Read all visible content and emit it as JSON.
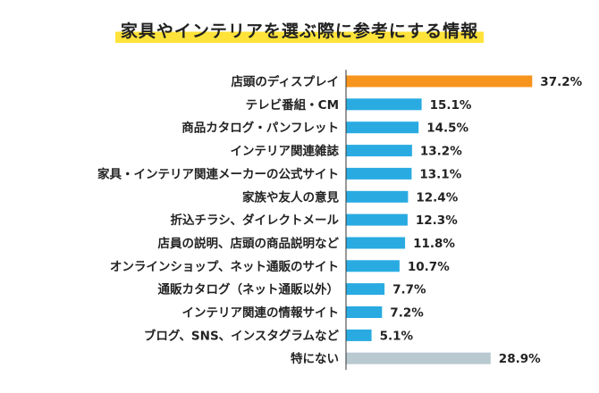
{
  "colors": {
    "highlight": "#F7941D",
    "primary": "#29ABE2",
    "none": "#B9C9D0",
    "axis": "#333333",
    "title_marker": "#FFE33A"
  },
  "chart_data": {
    "type": "bar",
    "orientation": "horizontal",
    "title": "家具やインテリアを選ぶ際に参考にする情報",
    "xlabel": "",
    "ylabel": "",
    "xlim": [
      0,
      40
    ],
    "grid": false,
    "categories": [
      "店頭のディスプレイ",
      "テレビ番組・CM",
      "商品カタログ・パンフレット",
      "インテリア関連雑誌",
      "家具・インテリア関連メーカーの公式サイト",
      "家族や友人の意見",
      "折込チラシ、ダイレクトメール",
      "店員の説明、店頭の商品説明など",
      "オンラインショップ、ネット通販のサイト",
      "通販カタログ（ネット通販以外）",
      "インテリア関連の情報サイト",
      "ブログ、SNS、インスタグラムなど",
      "特にない"
    ],
    "values": [
      37.2,
      15.1,
      14.5,
      13.2,
      13.1,
      12.4,
      12.3,
      11.8,
      10.7,
      7.7,
      7.2,
      5.1,
      28.9
    ],
    "value_labels": [
      "37.2%",
      "15.1%",
      "14.5%",
      "13.2%",
      "13.1%",
      "12.4%",
      "12.3%",
      "11.8%",
      "10.7%",
      "7.7%",
      "7.2%",
      "5.1%",
      "28.9%"
    ],
    "bar_color_keys": [
      "highlight",
      "primary",
      "primary",
      "primary",
      "primary",
      "primary",
      "primary",
      "primary",
      "primary",
      "primary",
      "primary",
      "primary",
      "none"
    ]
  }
}
